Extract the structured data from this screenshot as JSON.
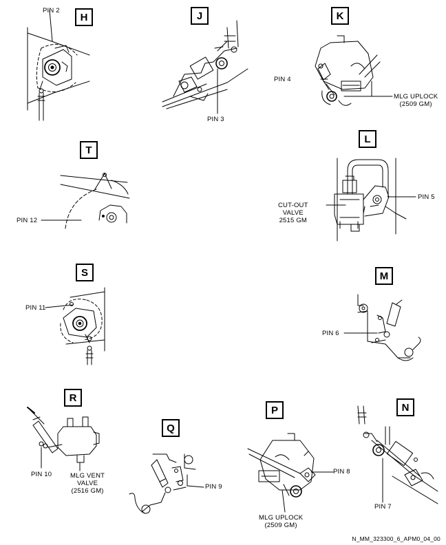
{
  "views": {
    "H": {
      "badge": "H",
      "pins": [
        "PIN 2"
      ]
    },
    "J": {
      "badge": "J",
      "pins": [
        "PIN 3"
      ]
    },
    "K": {
      "badge": "K",
      "pins": [
        "PIN 4"
      ],
      "part": [
        "MLG UPLOCK",
        "(2509 GM)"
      ]
    },
    "T": {
      "badge": "T",
      "pins": [
        "PIN 12"
      ]
    },
    "L": {
      "badge": "L",
      "pins": [
        "PIN 5"
      ],
      "part": [
        "CUT-OUT",
        "VALVE",
        "2515 GM"
      ]
    },
    "S": {
      "badge": "S",
      "pins": [
        "PIN 11"
      ]
    },
    "M": {
      "badge": "M",
      "pins": [
        "PIN 6"
      ]
    },
    "R": {
      "badge": "R",
      "pins": [
        "PIN 10"
      ],
      "part": [
        "MLG VENT",
        "VALVE",
        "(2516 GM)"
      ]
    },
    "Q": {
      "badge": "Q",
      "pins": [
        "PIN 9"
      ]
    },
    "P": {
      "badge": "P",
      "pins": [
        "PIN 8"
      ],
      "part": [
        "MLG UPLOCK",
        "(2509 GM)"
      ]
    },
    "N": {
      "badge": "N",
      "pins": [
        "PIN 7"
      ]
    }
  },
  "drawing_ref": "N_MM_323300_6_APM0_04_00"
}
